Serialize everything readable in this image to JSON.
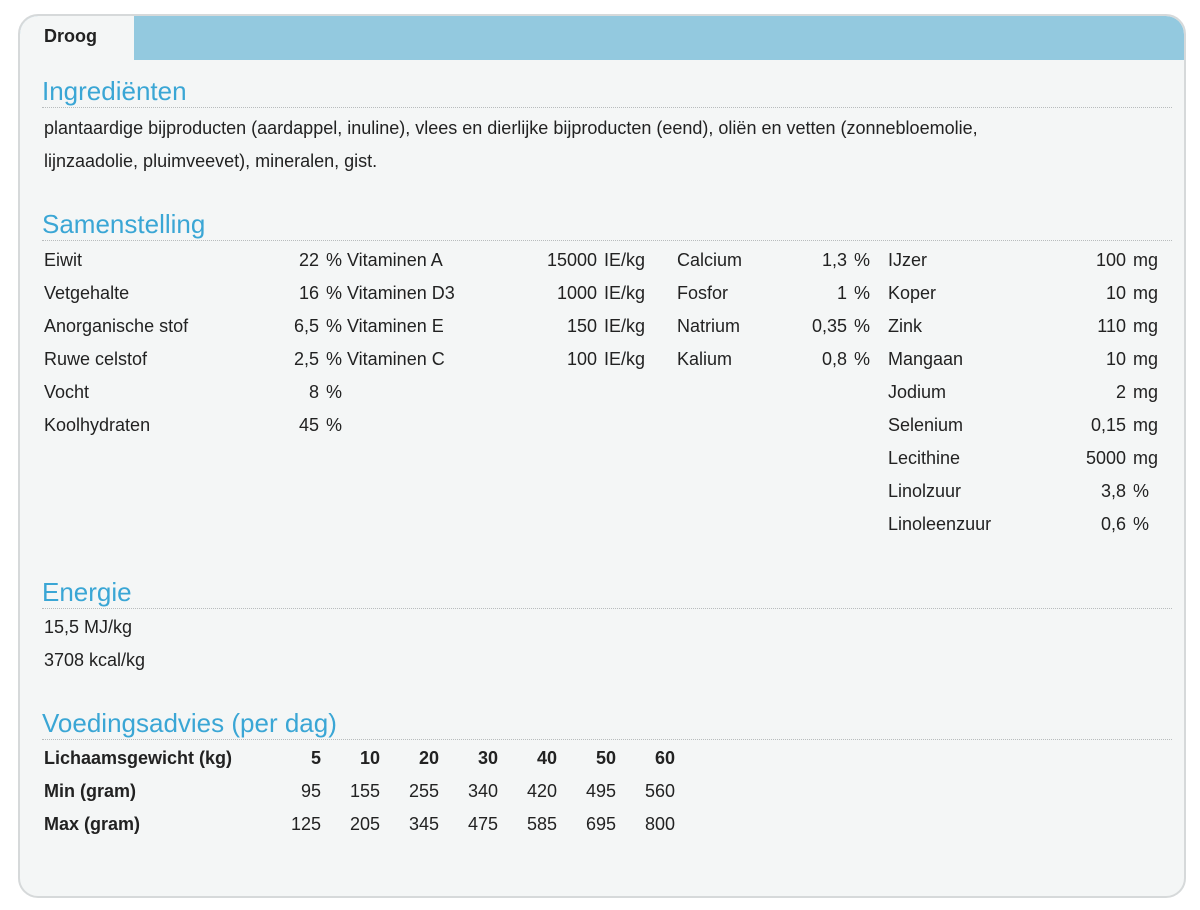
{
  "tabs": [
    {
      "label": "Droog",
      "active": true
    }
  ],
  "colors": {
    "accent": "#3aa6d5",
    "tabbar": "#93c9df",
    "background": "#f4f6f6"
  },
  "ingredients": {
    "title": "Ingrediënten",
    "lines": [
      "plantaardige bijproducten (aardappel, inuline), vlees en dierlijke bijproducten (eend), oliën en vetten (zonnebloemolie,",
      "lijnzaadolie, pluimveevet), mineralen, gist."
    ]
  },
  "composition": {
    "title": "Samenstelling",
    "groups": [
      [
        {
          "label": "Eiwit",
          "value": "22",
          "unit": "%"
        },
        {
          "label": "Vetgehalte",
          "value": "16",
          "unit": "%"
        },
        {
          "label": "Anorganische stof",
          "value": "6,5",
          "unit": "%"
        },
        {
          "label": "Ruwe celstof",
          "value": "2,5",
          "unit": "%"
        },
        {
          "label": "Vocht",
          "value": "8",
          "unit": "%"
        },
        {
          "label": "Koolhydraten",
          "value": "45",
          "unit": "%"
        }
      ],
      [
        {
          "label": "Vitaminen A",
          "value": "15000",
          "unit": "IE/kg"
        },
        {
          "label": "Vitaminen D3",
          "value": "1000",
          "unit": "IE/kg"
        },
        {
          "label": "Vitaminen E",
          "value": "150",
          "unit": "IE/kg"
        },
        {
          "label": "Vitaminen C",
          "value": "100",
          "unit": "IE/kg"
        }
      ],
      [
        {
          "label": "Calcium",
          "value": "1,3",
          "unit": "%"
        },
        {
          "label": "Fosfor",
          "value": "1",
          "unit": "%"
        },
        {
          "label": "Natrium",
          "value": "0,35",
          "unit": "%"
        },
        {
          "label": "Kalium",
          "value": "0,8",
          "unit": "%"
        }
      ],
      [
        {
          "label": "IJzer",
          "value": "100",
          "unit": "mg"
        },
        {
          "label": "Koper",
          "value": "10",
          "unit": "mg"
        },
        {
          "label": "Zink",
          "value": "110",
          "unit": "mg"
        },
        {
          "label": "Mangaan",
          "value": "10",
          "unit": "mg"
        },
        {
          "label": "Jodium",
          "value": "2",
          "unit": "mg"
        },
        {
          "label": "Selenium",
          "value": "0,15",
          "unit": "mg"
        },
        {
          "label": "Lecithine",
          "value": "5000",
          "unit": "mg"
        },
        {
          "label": "Linolzuur",
          "value": "3,8",
          "unit": "%"
        },
        {
          "label": "Linoleenzuur",
          "value": "0,6",
          "unit": "%"
        }
      ]
    ]
  },
  "energy": {
    "title": "Energie",
    "lines": [
      "15,5 MJ/kg",
      "3708 kcal/kg"
    ]
  },
  "feeding": {
    "title": "Voedingsadvies (per dag)",
    "rows": [
      {
        "label": "Lichaamsgewicht (kg)",
        "values": [
          "5",
          "10",
          "20",
          "30",
          "40",
          "50",
          "60"
        ],
        "bold": true
      },
      {
        "label": "Min (gram)",
        "values": [
          "95",
          "155",
          "255",
          "340",
          "420",
          "495",
          "560"
        ]
      },
      {
        "label": "Max (gram)",
        "values": [
          "125",
          "205",
          "345",
          "475",
          "585",
          "695",
          "800"
        ]
      }
    ]
  }
}
